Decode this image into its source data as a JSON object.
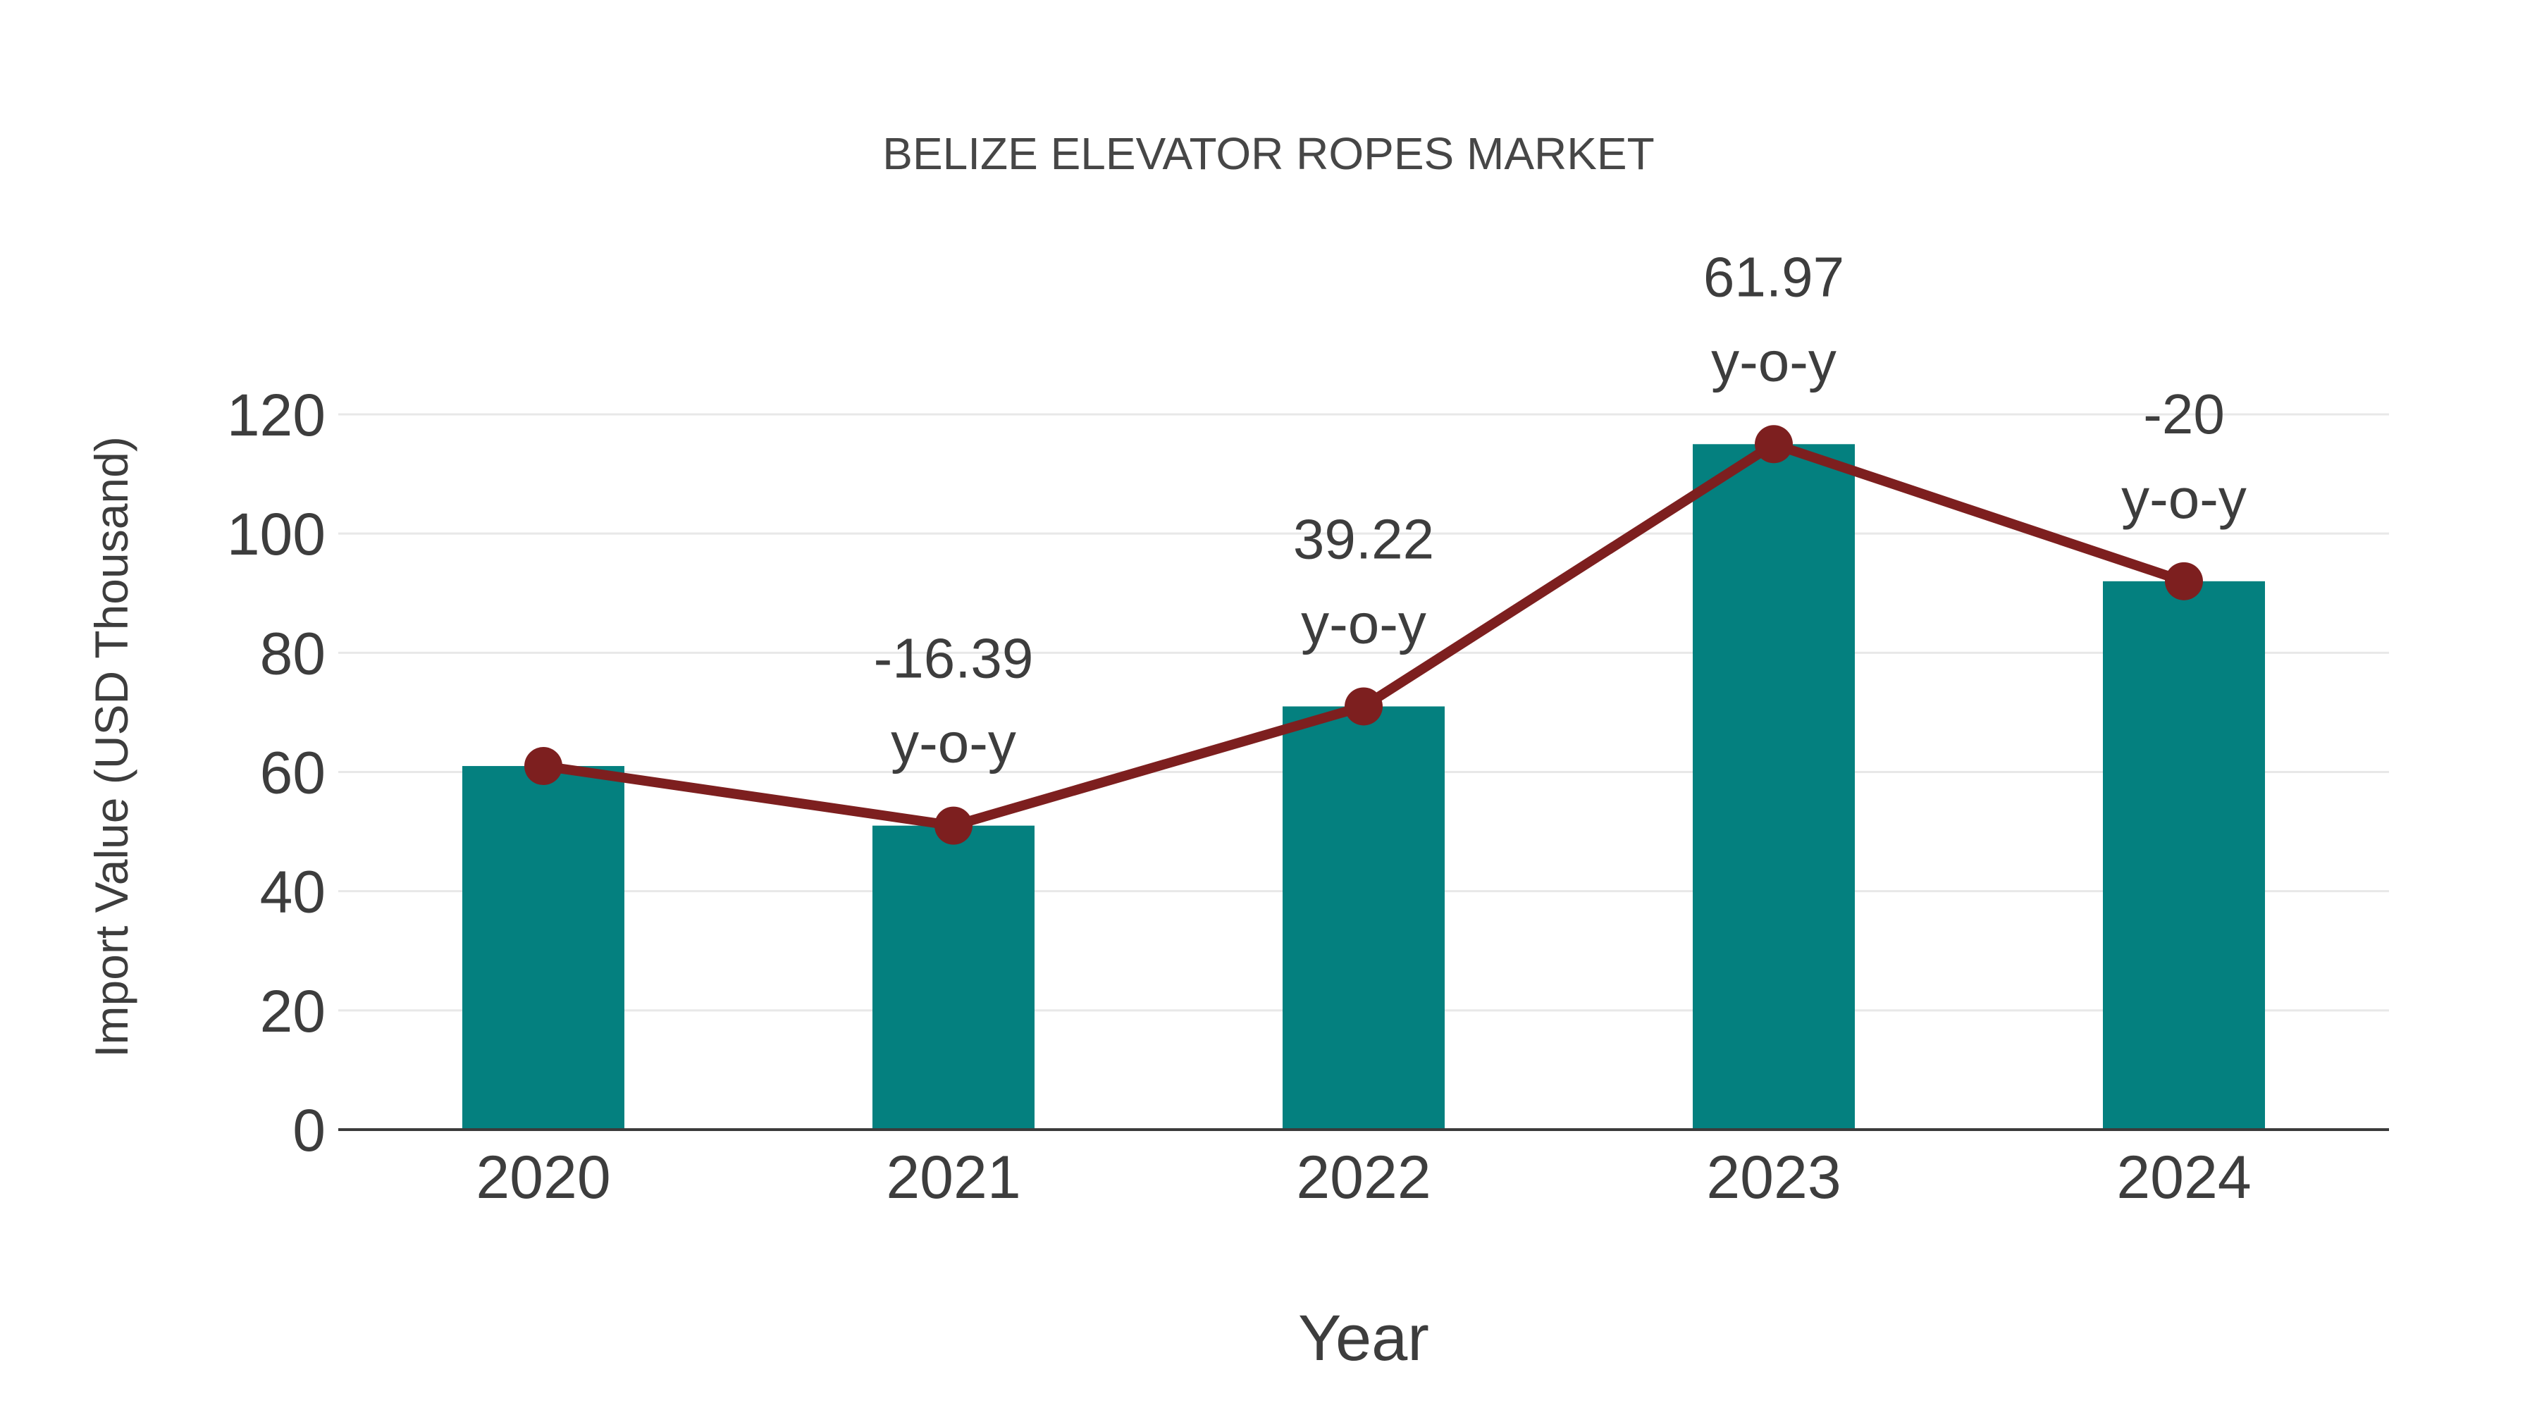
{
  "chart_data": {
    "type": "bar",
    "title": "BELIZE ELEVATOR ROPES MARKET",
    "xlabel": "Year",
    "ylabel": "Import Value (USD Thousand)",
    "categories": [
      "2020",
      "2021",
      "2022",
      "2023",
      "2024"
    ],
    "series": [
      {
        "name": "import-value-bars",
        "type": "bar",
        "values": [
          61,
          51,
          71,
          115,
          92
        ]
      },
      {
        "name": "import-value-trend-line",
        "type": "line",
        "values": [
          61,
          51,
          71,
          115,
          92
        ]
      }
    ],
    "annotations": [
      {
        "category": "2021",
        "value_label": "-16.39",
        "suffix": "y-o-y"
      },
      {
        "category": "2022",
        "value_label": "39.22",
        "suffix": "y-o-y"
      },
      {
        "category": "2023",
        "value_label": "61.97",
        "suffix": "y-o-y"
      },
      {
        "category": "2024",
        "value_label": "-20",
        "suffix": "y-o-y"
      }
    ],
    "y_ticks": [
      0,
      20,
      40,
      60,
      80,
      100,
      120
    ],
    "ylim": [
      0,
      130
    ],
    "grid": true,
    "legend": "none",
    "colors": {
      "bar": "#04807F",
      "line": "#7D1F1F",
      "marker": "#7D1F1F",
      "grid": "#E8E8E8",
      "axis": "#3B3B3B",
      "text": "#3D3D3D",
      "background": "#FFFFFF"
    }
  }
}
